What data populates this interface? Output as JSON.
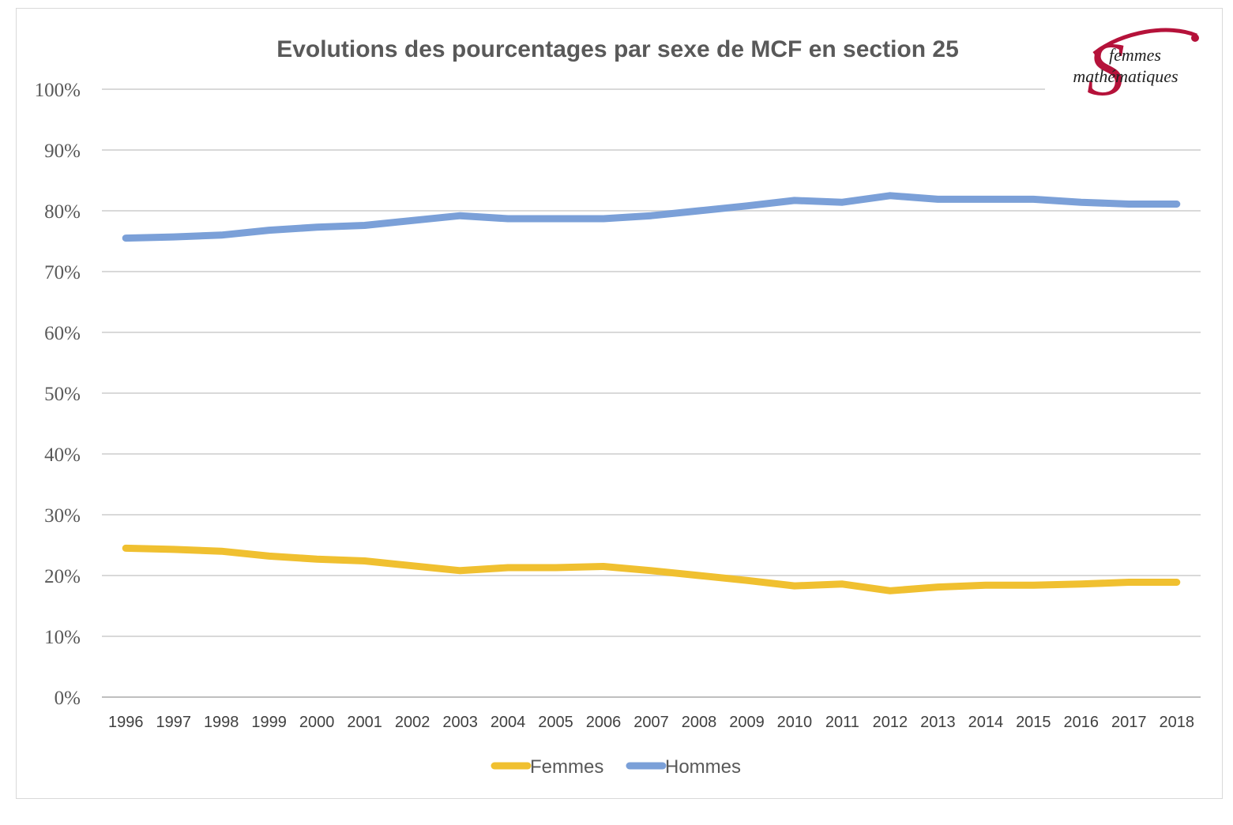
{
  "chart_data": {
    "type": "line",
    "title": "Evolutions des pourcentages par sexe de MCF en section 25",
    "xlabel": "",
    "ylabel": "",
    "ylim": [
      0,
      100
    ],
    "ytick_values": [
      0,
      10,
      20,
      30,
      40,
      50,
      60,
      70,
      80,
      90,
      100
    ],
    "ytick_labels": [
      "0%",
      "10%",
      "20%",
      "30%",
      "40%",
      "50%",
      "60%",
      "70%",
      "80%",
      "90%",
      "100%"
    ],
    "grid": true,
    "legend_position": "bottom",
    "categories": [
      "1996",
      "1997",
      "1998",
      "1999",
      "2000",
      "2001",
      "2002",
      "2003",
      "2004",
      "2005",
      "2006",
      "2007",
      "2008",
      "2009",
      "2010",
      "2011",
      "2012",
      "2013",
      "2014",
      "2015",
      "2016",
      "2017",
      "2018"
    ],
    "series": [
      {
        "name": "Femmes",
        "color": "#f0c030",
        "values": [
          24.5,
          24.3,
          24.0,
          23.2,
          22.7,
          22.4,
          21.6,
          20.8,
          21.3,
          21.3,
          21.5,
          20.8,
          20.0,
          19.2,
          18.3,
          18.6,
          17.5,
          18.1,
          18.4,
          18.4,
          18.6,
          18.9,
          18.9
        ]
      },
      {
        "name": "Hommes",
        "color": "#7ba0d8",
        "values": [
          75.5,
          75.7,
          76.0,
          76.8,
          77.3,
          77.6,
          78.4,
          79.2,
          78.7,
          78.7,
          78.7,
          79.2,
          80.0,
          80.8,
          81.7,
          81.4,
          82.5,
          81.9,
          81.9,
          81.9,
          81.4,
          81.1,
          81.1
        ]
      }
    ]
  },
  "logo": {
    "line1": "femmes",
    "line2": "mathématiques",
    "glyph": "S"
  }
}
